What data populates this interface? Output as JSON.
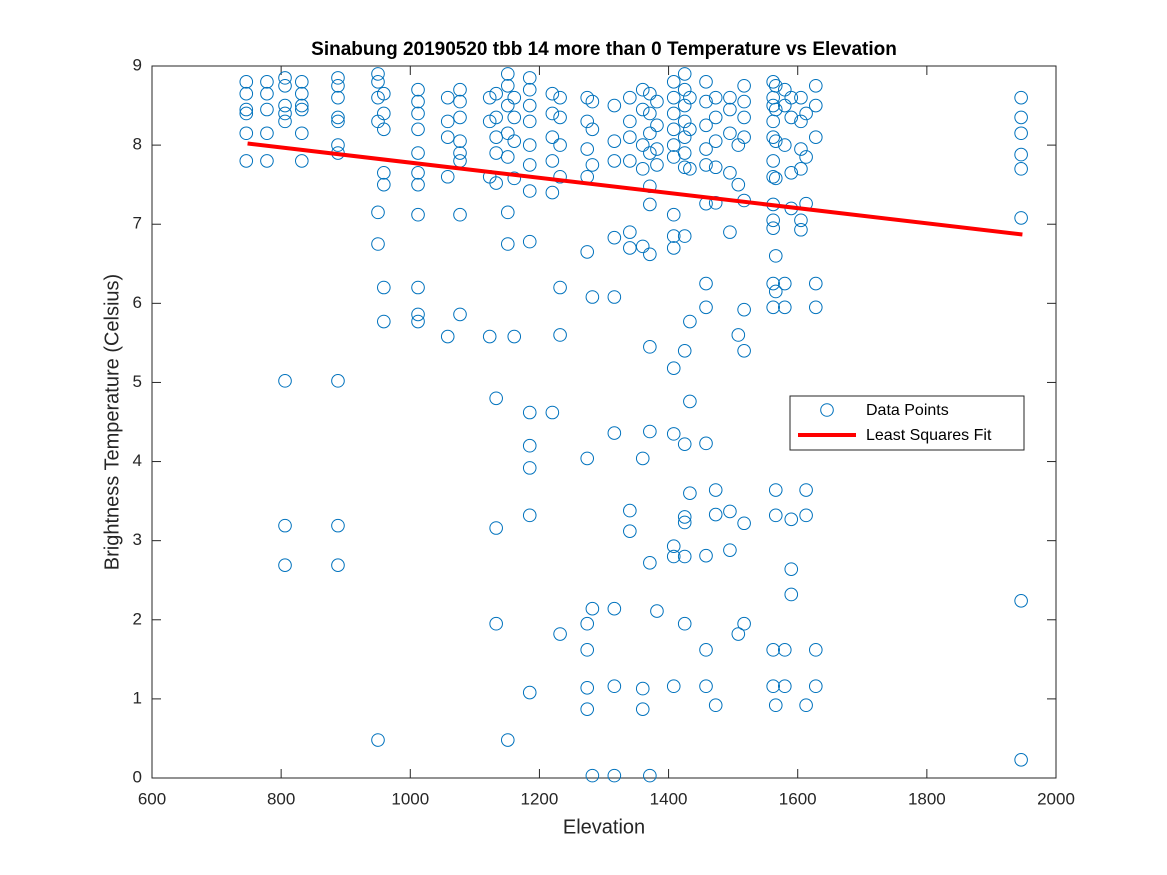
{
  "chart_data": {
    "type": "scatter",
    "title": "Sinabung 20190520 tbb 14 more than 0 Temperature vs Elevation",
    "x_label": "Elevation",
    "y_label": "Brightness Temperature (Celsius)",
    "xlim": [
      600,
      2000
    ],
    "ylim": [
      0,
      9
    ],
    "xticks": [
      600,
      800,
      1000,
      1200,
      1400,
      1600,
      1800,
      2000
    ],
    "yticks": [
      0,
      1,
      2,
      3,
      4,
      5,
      6,
      7,
      8,
      9
    ],
    "legend_position": "east",
    "series": [
      {
        "name": "Data Points",
        "color": "#0072bd",
        "type": "scatter",
        "x": [
          746,
          746,
          746,
          746,
          746,
          746,
          778,
          778,
          778,
          778,
          778,
          806,
          806,
          806,
          806,
          806,
          806,
          806,
          806,
          832,
          832,
          832,
          832,
          832,
          832,
          888,
          888,
          888,
          888,
          888,
          888,
          888,
          888,
          888,
          888,
          950,
          950,
          950,
          950,
          950,
          950,
          950,
          959,
          959,
          959,
          959,
          959,
          959,
          959,
          1012,
          1012,
          1012,
          1012,
          1012,
          1012,
          1012,
          1012,
          1012,
          1012,
          1012,
          1058,
          1058,
          1058,
          1058,
          1058,
          1077,
          1077,
          1077,
          1077,
          1077,
          1077,
          1077,
          1077,
          1123,
          1123,
          1123,
          1123,
          1133,
          1133,
          1133,
          1133,
          1133,
          1133,
          1133,
          1133,
          1151,
          1151,
          1151,
          1151,
          1151,
          1151,
          1151,
          1151,
          1161,
          1161,
          1161,
          1161,
          1161,
          1185,
          1185,
          1185,
          1185,
          1185,
          1185,
          1185,
          1185,
          1185,
          1185,
          1185,
          1185,
          1185,
          1220,
          1220,
          1220,
          1220,
          1220,
          1220,
          1232,
          1232,
          1232,
          1232,
          1232,
          1232,
          1232,
          1274,
          1274,
          1274,
          1274,
          1274,
          1274,
          1274,
          1274,
          1274,
          1274,
          1282,
          1282,
          1282,
          1282,
          1282,
          1282,
          1316,
          1316,
          1316,
          1316,
          1316,
          1316,
          1316,
          1316,
          1316,
          1340,
          1340,
          1340,
          1340,
          1340,
          1340,
          1340,
          1340,
          1360,
          1360,
          1360,
          1360,
          1360,
          1360,
          1360,
          1360,
          1371,
          1371,
          1371,
          1371,
          1371,
          1371,
          1371,
          1371,
          1371,
          1371,
          1371,
          1382,
          1382,
          1382,
          1382,
          1382,
          1408,
          1408,
          1408,
          1408,
          1408,
          1408,
          1408,
          1408,
          1408,
          1408,
          1408,
          1408,
          1408,
          1408,
          1425,
          1425,
          1425,
          1425,
          1425,
          1425,
          1425,
          1425,
          1425,
          1425,
          1425,
          1425,
          1425,
          1425,
          1433,
          1433,
          1433,
          1433,
          1433,
          1433,
          1458,
          1458,
          1458,
          1458,
          1458,
          1458,
          1458,
          1458,
          1458,
          1458,
          1458,
          1458,
          1473,
          1473,
          1473,
          1473,
          1473,
          1473,
          1473,
          1473,
          1495,
          1495,
          1495,
          1495,
          1495,
          1495,
          1495,
          1508,
          1508,
          1508,
          1508,
          1517,
          1517,
          1517,
          1517,
          1517,
          1517,
          1517,
          1517,
          1517,
          1562,
          1562,
          1562,
          1562,
          1562,
          1562,
          1562,
          1562,
          1562,
          1562,
          1562,
          1562,
          1562,
          1562,
          1566,
          1566,
          1566,
          1566,
          1566,
          1566,
          1566,
          1566,
          1566,
          1580,
          1580,
          1580,
          1580,
          1580,
          1580,
          1580,
          1590,
          1590,
          1590,
          1590,
          1590,
          1590,
          1590,
          1605,
          1605,
          1605,
          1605,
          1605,
          1605,
          1613,
          1613,
          1613,
          1613,
          1613,
          1613,
          1628,
          1628,
          1628,
          1628,
          1628,
          1628,
          1628,
          1946,
          1946,
          1946,
          1946,
          1946,
          1946,
          1946,
          1946
        ],
        "values": [
          8.8,
          8.65,
          8.45,
          8.4,
          8.15,
          7.8,
          8.8,
          8.65,
          8.45,
          8.15,
          7.8,
          8.85,
          8.75,
          8.5,
          8.4,
          8.3,
          5.02,
          3.19,
          2.69,
          8.8,
          8.65,
          8.5,
          8.45,
          8.15,
          7.8,
          8.85,
          8.75,
          8.6,
          8.35,
          8.3,
          8.0,
          7.9,
          5.02,
          3.19,
          2.69,
          8.9,
          8.8,
          8.6,
          8.3,
          7.15,
          6.75,
          0.48,
          8.65,
          8.4,
          8.2,
          7.65,
          7.5,
          6.2,
          5.77,
          8.7,
          8.55,
          8.4,
          8.2,
          7.9,
          7.65,
          7.5,
          7.12,
          6.2,
          5.86,
          5.77,
          8.6,
          8.3,
          8.1,
          7.6,
          5.58,
          8.7,
          8.55,
          8.35,
          8.05,
          7.9,
          7.8,
          7.12,
          5.86,
          8.6,
          8.3,
          7.6,
          5.58,
          8.65,
          8.35,
          8.1,
          7.9,
          7.52,
          4.8,
          3.16,
          1.95,
          8.9,
          8.75,
          8.5,
          8.15,
          7.85,
          7.15,
          6.75,
          0.48,
          8.6,
          8.35,
          8.05,
          7.58,
          5.58,
          8.85,
          8.7,
          8.5,
          8.3,
          8.0,
          7.75,
          7.42,
          6.78,
          4.62,
          4.2,
          3.92,
          3.32,
          1.08,
          8.65,
          8.4,
          8.1,
          7.8,
          7.4,
          4.62,
          8.6,
          8.35,
          8.0,
          7.6,
          6.2,
          5.6,
          1.82,
          8.6,
          8.3,
          7.95,
          7.6,
          6.65,
          4.04,
          1.95,
          1.62,
          1.14,
          0.87,
          8.55,
          8.2,
          7.75,
          6.08,
          2.14,
          0.03,
          8.5,
          8.05,
          7.8,
          6.83,
          6.08,
          4.36,
          2.14,
          1.16,
          0.03,
          8.6,
          8.3,
          8.1,
          7.8,
          6.9,
          6.7,
          3.38,
          3.12,
          8.7,
          8.45,
          8.0,
          7.7,
          6.72,
          4.04,
          1.13,
          0.87,
          8.65,
          8.4,
          8.15,
          7.9,
          7.48,
          7.25,
          6.62,
          5.45,
          4.38,
          2.72,
          0.03,
          8.55,
          8.25,
          7.95,
          7.75,
          2.11,
          8.8,
          8.6,
          8.4,
          8.2,
          8.0,
          7.85,
          7.12,
          6.85,
          6.7,
          5.18,
          4.35,
          2.93,
          2.8,
          1.16,
          8.9,
          8.7,
          8.5,
          8.3,
          8.1,
          7.9,
          7.72,
          6.85,
          5.4,
          4.22,
          3.3,
          3.23,
          2.8,
          1.95,
          8.6,
          8.2,
          7.7,
          5.77,
          4.76,
          3.6,
          8.8,
          8.55,
          8.25,
          7.95,
          7.75,
          7.26,
          6.25,
          5.95,
          4.23,
          2.81,
          1.62,
          1.16,
          8.6,
          8.35,
          8.05,
          7.72,
          7.27,
          3.64,
          3.33,
          0.92,
          8.6,
          8.45,
          8.15,
          7.65,
          6.9,
          3.37,
          2.88,
          8.0,
          7.5,
          5.6,
          1.82,
          8.75,
          8.55,
          8.35,
          8.1,
          7.3,
          5.92,
          5.4,
          3.22,
          1.95,
          8.8,
          8.6,
          8.5,
          8.3,
          8.1,
          7.8,
          7.6,
          7.25,
          7.05,
          6.95,
          6.25,
          5.95,
          1.62,
          1.16,
          8.75,
          8.45,
          8.05,
          7.58,
          6.6,
          6.15,
          3.64,
          3.32,
          0.92,
          8.7,
          8.5,
          8.0,
          6.25,
          5.95,
          1.62,
          1.16,
          8.6,
          8.35,
          7.65,
          7.2,
          3.27,
          2.64,
          2.32,
          8.6,
          8.3,
          7.95,
          7.7,
          7.05,
          6.93,
          8.4,
          7.85,
          7.26,
          3.64,
          3.32,
          0.92,
          8.75,
          8.5,
          8.1,
          6.25,
          5.95,
          1.62,
          1.16,
          8.6,
          8.35,
          8.15,
          7.88,
          7.7,
          7.08,
          2.24,
          0.23
        ]
      },
      {
        "name": "Least Squares Fit",
        "color": "#ff0000",
        "type": "line",
        "x": [
          748,
          1948
        ],
        "values": [
          8.02,
          6.87
        ]
      }
    ]
  }
}
